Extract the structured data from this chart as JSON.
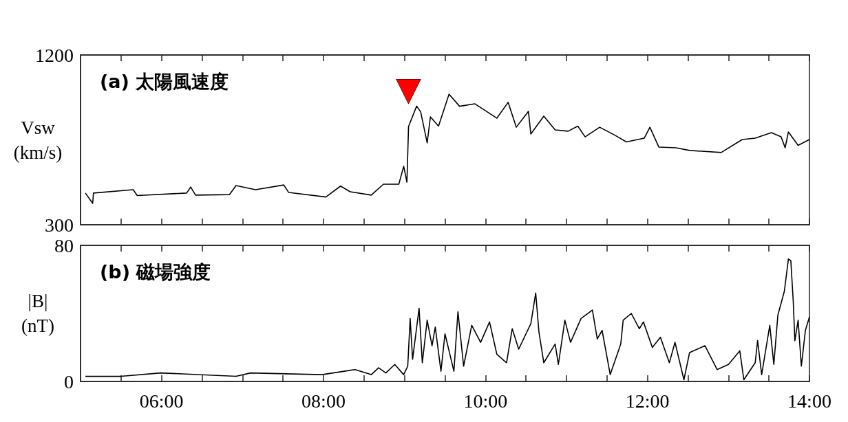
{
  "chart_data": [
    {
      "type": "line",
      "title": "(a) 太陽風速度",
      "ylabel": "Vsw (km/s)",
      "xlim": [
        5,
        14
      ],
      "ylim": [
        300,
        1200
      ],
      "yticks": [
        300,
        1200
      ],
      "tick_labels": "y",
      "marker": "none",
      "xticks": [
        {
          "value": 5.5,
          "label": null
        },
        {
          "value": 6,
          "label": null
        },
        {
          "value": 6.5,
          "label": null
        },
        {
          "value": 7,
          "label": null
        },
        {
          "value": 7.5,
          "label": null
        },
        {
          "value": 8,
          "label": null
        },
        {
          "value": 8.5,
          "label": null
        },
        {
          "value": 9,
          "label": null
        },
        {
          "value": 9.5,
          "label": null
        },
        {
          "value": 10,
          "label": null
        },
        {
          "value": 10.5,
          "label": null
        },
        {
          "value": 11,
          "label": null
        },
        {
          "value": 11.5,
          "label": null
        },
        {
          "value": 12,
          "label": null
        },
        {
          "value": 12.5,
          "label": null
        },
        {
          "value": 13,
          "label": null
        },
        {
          "value": 13.5,
          "label": null
        },
        {
          "value": 14,
          "label": null
        }
      ],
      "annotations": [
        {
          "text": "▼",
          "x": 9.05,
          "y": 821
        }
      ],
      "series": [
        {
          "color": "#000000",
          "x": [
            5.06,
            5.15,
            5.16,
            5.65,
            5.7,
            6.31,
            6.36,
            6.42,
            6.84,
            6.92,
            7.16,
            7.51,
            7.57,
            8.03,
            8.21,
            8.33,
            8.59,
            8.74,
            8.93,
            8.99,
            9.03,
            9.05,
            9.15,
            9.2,
            9.28,
            9.32,
            9.42,
            9.55,
            9.68,
            9.87,
            10.14,
            10.28,
            10.38,
            10.53,
            10.56,
            10.72,
            10.86,
            11.02,
            11.14,
            11.23,
            11.41,
            11.6,
            11.74,
            11.96,
            12.03,
            12.14,
            12.35,
            12.52,
            12.91,
            13.17,
            13.33,
            13.53,
            13.65,
            13.7,
            13.74,
            13.86,
            14.0
          ],
          "values": [
            468,
            413,
            468,
            486,
            455,
            468,
            500,
            457,
            460,
            508,
            486,
            511,
            471,
            447,
            505,
            475,
            457,
            515,
            515,
            610,
            526,
            821,
            929,
            898,
            734,
            872,
            823,
            992,
            928,
            941,
            865,
            949,
            817,
            901,
            781,
            876,
            803,
            796,
            823,
            766,
            817,
            774,
            739,
            759,
            817,
            712,
            708,
            694,
            683,
            752,
            759,
            788,
            766,
            708,
            792,
            721,
            752
          ]
        }
      ]
    },
    {
      "type": "line",
      "title": "(b) 磁場強度",
      "ylabel": "|B| (nT)",
      "xlim": [
        5,
        14
      ],
      "ylim": [
        0,
        80
      ],
      "yticks": [
        0,
        80
      ],
      "marker": "none",
      "xticks": [
        {
          "value": 5.5,
          "label": null
        },
        {
          "value": 6,
          "label": "06:00"
        },
        {
          "value": 6.5,
          "label": null
        },
        {
          "value": 7,
          "label": null
        },
        {
          "value": 7.5,
          "label": null
        },
        {
          "value": 8,
          "label": "08:00"
        },
        {
          "value": 8.5,
          "label": null
        },
        {
          "value": 9,
          "label": null
        },
        {
          "value": 9.5,
          "label": null
        },
        {
          "value": 10,
          "label": "10:00"
        },
        {
          "value": 10.5,
          "label": null
        },
        {
          "value": 11,
          "label": null
        },
        {
          "value": 11.5,
          "label": null
        },
        {
          "value": 12,
          "label": "12:00"
        },
        {
          "value": 12.5,
          "label": null
        },
        {
          "value": 13,
          "label": null
        },
        {
          "value": 13.5,
          "label": null
        },
        {
          "value": 14,
          "label": "14:00"
        }
      ],
      "series": [
        {
          "color": "#000000",
          "x": [
            5.06,
            5.5,
            5.99,
            6.92,
            7.1,
            7.98,
            8.39,
            8.59,
            8.68,
            8.77,
            8.88,
            8.99,
            9.04,
            9.07,
            9.1,
            9.18,
            9.22,
            9.28,
            9.34,
            9.38,
            9.45,
            9.5,
            9.61,
            9.66,
            9.73,
            9.83,
            9.94,
            10.05,
            10.14,
            10.26,
            10.33,
            10.41,
            10.56,
            10.62,
            10.66,
            10.72,
            10.86,
            10.9,
            10.98,
            11.05,
            11.18,
            11.32,
            11.38,
            11.44,
            11.54,
            11.67,
            11.7,
            11.8,
            11.9,
            11.95,
            12.06,
            12.16,
            12.27,
            12.34,
            12.45,
            12.52,
            12.71,
            12.86,
            13.0,
            13.14,
            13.19,
            13.33,
            13.36,
            13.41,
            13.51,
            13.56,
            13.61,
            13.69,
            13.74,
            13.77,
            13.8,
            13.82,
            13.86,
            13.9,
            13.95,
            14.0
          ],
          "values": [
            3,
            3,
            5,
            3,
            5,
            4,
            7,
            4,
            8,
            5,
            10,
            4,
            9,
            37,
            13,
            43,
            11,
            36,
            21,
            32,
            6,
            28,
            6,
            41,
            9,
            33,
            23,
            35,
            16,
            11,
            31,
            19,
            34,
            52,
            29,
            11,
            22,
            10,
            36,
            23,
            37,
            42,
            25,
            30,
            4,
            22,
            36,
            40,
            31,
            35,
            20,
            26,
            11,
            23,
            1,
            17,
            21,
            7,
            10,
            18,
            1,
            11,
            24,
            4,
            33,
            10,
            39,
            53,
            72,
            71,
            47,
            24,
            36,
            9,
            30,
            38
          ]
        }
      ]
    }
  ]
}
